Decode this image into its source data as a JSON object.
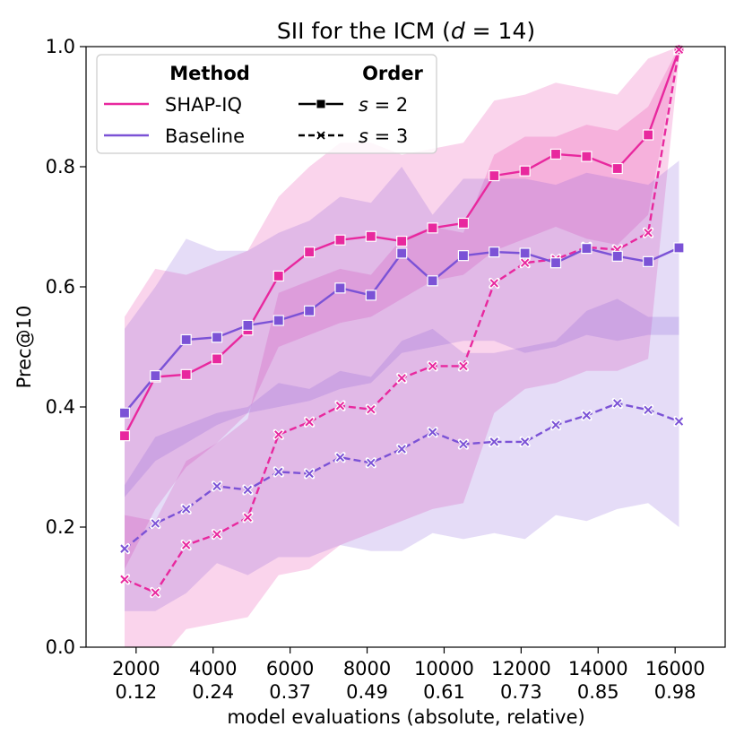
{
  "chart_data": {
    "type": "line",
    "title_prefix": "SII for the ICM (",
    "title_var": "d",
    "title_suffix": " = 14)",
    "xlabel": "model evaluations (absolute, relative)",
    "ylabel": "Prec@10",
    "xlim": [
      700,
      17300
    ],
    "ylim": [
      0.0,
      1.0
    ],
    "x_ticks": [
      {
        "value": 2000,
        "abs": "2000",
        "rel": "0.12"
      },
      {
        "value": 4000,
        "abs": "4000",
        "rel": "0.24"
      },
      {
        "value": 6000,
        "abs": "6000",
        "rel": "0.37"
      },
      {
        "value": 8000,
        "abs": "8000",
        "rel": "0.49"
      },
      {
        "value": 10000,
        "abs": "10000",
        "rel": "0.61"
      },
      {
        "value": 12000,
        "abs": "12000",
        "rel": "0.73"
      },
      {
        "value": 14000,
        "abs": "14000",
        "rel": "0.85"
      },
      {
        "value": 16000,
        "abs": "16000",
        "rel": "0.98"
      }
    ],
    "y_ticks": [
      "0.0",
      "0.2",
      "0.4",
      "0.6",
      "0.8",
      "1.0"
    ],
    "x": [
      1700,
      2500,
      3300,
      4100,
      4900,
      5700,
      6500,
      7300,
      8100,
      8900,
      9700,
      10500,
      11300,
      12100,
      12900,
      13700,
      14500,
      15300,
      16100
    ],
    "series": [
      {
        "name": "SHAP-IQ s=2",
        "method": "SHAP-IQ",
        "order": "s = 2",
        "color": "#e8289e",
        "dash": "solid",
        "marker": "square",
        "values": [
          0.352,
          0.45,
          0.454,
          0.48,
          0.528,
          0.618,
          0.658,
          0.678,
          0.684,
          0.676,
          0.698,
          0.706,
          0.785,
          0.793,
          0.821,
          0.817,
          0.797,
          0.853,
          0.995
        ],
        "ci_low": [
          0.13,
          0.23,
          0.3,
          0.34,
          0.39,
          0.5,
          0.52,
          0.54,
          0.55,
          0.58,
          0.61,
          0.62,
          0.66,
          0.68,
          0.7,
          0.68,
          0.67,
          0.72,
          1.0
        ],
        "ci_high": [
          0.55,
          0.63,
          0.62,
          0.64,
          0.66,
          0.75,
          0.8,
          0.84,
          0.84,
          0.82,
          0.83,
          0.84,
          0.91,
          0.92,
          0.94,
          0.93,
          0.92,
          0.98,
          1.0
        ]
      },
      {
        "name": "SHAP-IQ s=3",
        "method": "SHAP-IQ",
        "order": "s = 3",
        "color": "#e8289e",
        "dash": "dashed",
        "marker": "x",
        "values": [
          0.113,
          0.091,
          0.17,
          0.188,
          0.216,
          0.354,
          0.375,
          0.402,
          0.396,
          0.448,
          0.468,
          0.468,
          0.606,
          0.64,
          0.646,
          0.666,
          0.662,
          0.69,
          0.995
        ],
        "ci_low": [
          0.0,
          -0.03,
          0.03,
          0.04,
          0.05,
          0.12,
          0.13,
          0.17,
          0.19,
          0.21,
          0.23,
          0.24,
          0.39,
          0.43,
          0.44,
          0.46,
          0.46,
          0.48,
          0.98
        ],
        "ci_high": [
          0.22,
          0.21,
          0.31,
          0.34,
          0.38,
          0.59,
          0.61,
          0.63,
          0.62,
          0.68,
          0.7,
          0.69,
          0.82,
          0.85,
          0.85,
          0.87,
          0.86,
          0.9,
          1.0
        ]
      },
      {
        "name": "Baseline s=2",
        "method": "Baseline",
        "order": "s = 2",
        "color": "#7b52d6",
        "dash": "solid",
        "marker": "square",
        "values": [
          0.39,
          0.452,
          0.512,
          0.516,
          0.536,
          0.544,
          0.56,
          0.598,
          0.586,
          0.656,
          0.61,
          0.652,
          0.658,
          0.656,
          0.64,
          0.664,
          0.651,
          0.642,
          0.665
        ],
        "ci_low": [
          0.25,
          0.31,
          0.34,
          0.37,
          0.39,
          0.4,
          0.41,
          0.43,
          0.44,
          0.49,
          0.5,
          0.51,
          0.51,
          0.49,
          0.5,
          0.52,
          0.51,
          0.52,
          0.52
        ],
        "ci_high": [
          0.53,
          0.6,
          0.68,
          0.66,
          0.66,
          0.69,
          0.71,
          0.75,
          0.74,
          0.8,
          0.72,
          0.78,
          0.78,
          0.78,
          0.77,
          0.79,
          0.78,
          0.77,
          0.81
        ]
      },
      {
        "name": "Baseline s=3",
        "method": "Baseline",
        "order": "s = 3",
        "color": "#7b52d6",
        "dash": "dashed",
        "marker": "x",
        "values": [
          0.164,
          0.206,
          0.23,
          0.268,
          0.262,
          0.292,
          0.289,
          0.316,
          0.307,
          0.33,
          0.358,
          0.338,
          0.342,
          0.342,
          0.37,
          0.386,
          0.406,
          0.395,
          0.376
        ],
        "ci_low": [
          0.06,
          0.06,
          0.09,
          0.14,
          0.12,
          0.15,
          0.15,
          0.17,
          0.16,
          0.16,
          0.19,
          0.18,
          0.19,
          0.18,
          0.22,
          0.21,
          0.23,
          0.24,
          0.2
        ],
        "ci_high": [
          0.27,
          0.35,
          0.37,
          0.39,
          0.4,
          0.44,
          0.43,
          0.46,
          0.45,
          0.51,
          0.53,
          0.49,
          0.49,
          0.5,
          0.51,
          0.56,
          0.58,
          0.55,
          0.55
        ]
      }
    ],
    "legend": {
      "position": "top-left",
      "method_header": "Method",
      "order_header": "Order",
      "methods": [
        {
          "label": "SHAP-IQ",
          "color": "#e8289e"
        },
        {
          "label": "Baseline",
          "color": "#7b52d6"
        }
      ],
      "orders": [
        {
          "var": "s",
          "suffix": " = 2",
          "dash": "solid",
          "marker": "square"
        },
        {
          "var": "s",
          "suffix": " = 3",
          "dash": "dashed",
          "marker": "x"
        }
      ]
    }
  }
}
